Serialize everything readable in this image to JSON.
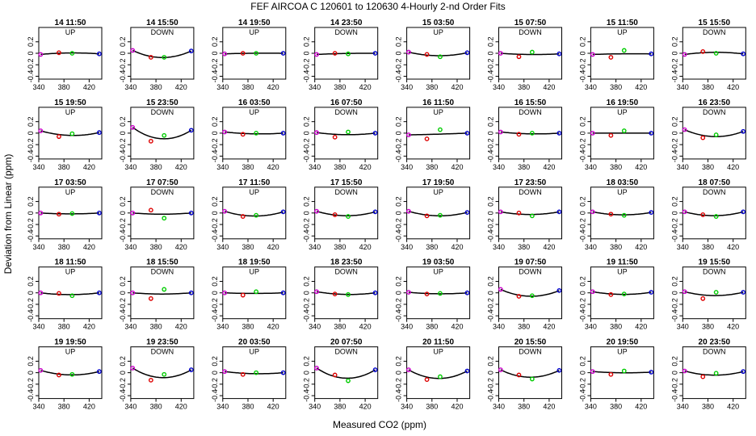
{
  "figure": {
    "title": "FEF   AIRCOA C   120601 to 120630   4-Hourly 2-nd Order Fits",
    "xlabel": "Measured CO2 (ppm)",
    "ylabel": "Deviation from Linear (ppm)"
  },
  "colors": {
    "axis": "#000000",
    "fit_curve": "#000000",
    "std_first": "#cc00cc",
    "std_second": "#dd0000",
    "std_third": "#00cc00",
    "std_fourth": "#0000cc"
  },
  "chart_data": {
    "type": "scatter",
    "panel_grid": "5 rows x 8 columns",
    "xlim": [
      340,
      440
    ],
    "ylim": [
      -0.45,
      0.45
    ],
    "x_ticks": [
      340,
      380,
      420
    ],
    "y_ticks": [
      -0.4,
      -0.2,
      0,
      0.2
    ],
    "grid": false,
    "standards_x": [
      343,
      372,
      393,
      436
    ],
    "panels": [
      {
        "time": "14 11:50",
        "dir": "UP",
        "resid": [
          -0.02,
          0.01,
          0.0,
          -0.01
        ]
      },
      {
        "time": "14 15:50",
        "dir": "DOWN",
        "resid": [
          0.05,
          -0.07,
          -0.07,
          0.04
        ]
      },
      {
        "time": "14 19:50",
        "dir": "UP",
        "resid": [
          -0.01,
          0.0,
          0.0,
          0.0
        ]
      },
      {
        "time": "14 23:50",
        "dir": "DOWN",
        "resid": [
          -0.02,
          0.0,
          -0.01,
          0.0
        ]
      },
      {
        "time": "15 03:50",
        "dir": "UP",
        "resid": [
          0.02,
          -0.02,
          -0.06,
          0.01
        ]
      },
      {
        "time": "15 07:50",
        "dir": "DOWN",
        "resid": [
          0.0,
          -0.06,
          0.02,
          -0.01
        ]
      },
      {
        "time": "15 11:50",
        "dir": "UP",
        "resid": [
          -0.02,
          -0.07,
          0.05,
          -0.01
        ]
      },
      {
        "time": "15 15:50",
        "dir": "DOWN",
        "resid": [
          -0.02,
          0.03,
          0.0,
          -0.01
        ]
      },
      {
        "time": "15 19:50",
        "dir": "UP",
        "resid": [
          0.04,
          -0.06,
          -0.01,
          0.01
        ]
      },
      {
        "time": "15 23:50",
        "dir": "DOWN",
        "resid": [
          0.1,
          -0.14,
          -0.04,
          0.05
        ]
      },
      {
        "time": "16 03:50",
        "dir": "UP",
        "resid": [
          0.02,
          -0.02,
          0.0,
          0.0
        ]
      },
      {
        "time": "16 07:50",
        "dir": "DOWN",
        "resid": [
          0.01,
          -0.07,
          0.02,
          0.0
        ]
      },
      {
        "time": "16 11:50",
        "dir": "UP",
        "resid": [
          -0.03,
          -0.1,
          0.06,
          0.0
        ]
      },
      {
        "time": "16 15:50",
        "dir": "DOWN",
        "resid": [
          0.02,
          -0.02,
          0.0,
          0.0
        ]
      },
      {
        "time": "16 19:50",
        "dir": "UP",
        "resid": [
          0.0,
          -0.04,
          0.04,
          0.0
        ]
      },
      {
        "time": "16 23:50",
        "dir": "DOWN",
        "resid": [
          0.06,
          -0.08,
          -0.03,
          0.03
        ]
      },
      {
        "time": "17 03:50",
        "dir": "UP",
        "resid": [
          0.0,
          -0.02,
          -0.01,
          0.0
        ]
      },
      {
        "time": "17 07:50",
        "dir": "DOWN",
        "resid": [
          0.0,
          0.05,
          -0.09,
          0.0
        ]
      },
      {
        "time": "17 11:50",
        "dir": "UP",
        "resid": [
          0.03,
          -0.06,
          -0.04,
          0.02
        ]
      },
      {
        "time": "17 15:50",
        "dir": "DOWN",
        "resid": [
          0.03,
          -0.03,
          -0.06,
          0.02
        ]
      },
      {
        "time": "17 19:50",
        "dir": "UP",
        "resid": [
          0.03,
          -0.05,
          -0.04,
          0.01
        ]
      },
      {
        "time": "17 23:50",
        "dir": "DOWN",
        "resid": [
          0.02,
          0.0,
          -0.05,
          0.02
        ]
      },
      {
        "time": "18 03:50",
        "dir": "UP",
        "resid": [
          0.02,
          -0.02,
          -0.04,
          0.01
        ]
      },
      {
        "time": "18 07:50",
        "dir": "DOWN",
        "resid": [
          0.02,
          -0.03,
          -0.06,
          0.02
        ]
      },
      {
        "time": "18 11:50",
        "dir": "UP",
        "resid": [
          0.0,
          -0.01,
          -0.05,
          0.0
        ]
      },
      {
        "time": "18 15:50",
        "dir": "DOWN",
        "resid": [
          0.0,
          -0.1,
          0.06,
          0.0
        ]
      },
      {
        "time": "18 19:50",
        "dir": "UP",
        "resid": [
          0.0,
          -0.04,
          0.02,
          0.0
        ]
      },
      {
        "time": "18 23:50",
        "dir": "DOWN",
        "resid": [
          0.02,
          -0.02,
          -0.03,
          0.0
        ]
      },
      {
        "time": "19 03:50",
        "dir": "UP",
        "resid": [
          0.01,
          -0.02,
          -0.01,
          0.0
        ]
      },
      {
        "time": "19 07:50",
        "dir": "DOWN",
        "resid": [
          0.06,
          -0.06,
          -0.05,
          0.04
        ]
      },
      {
        "time": "19 11:50",
        "dir": "UP",
        "resid": [
          0.02,
          -0.03,
          -0.02,
          0.01
        ]
      },
      {
        "time": "19 15:50",
        "dir": "DOWN",
        "resid": [
          0.02,
          -0.1,
          0.01,
          0.01
        ]
      },
      {
        "time": "19 19:50",
        "dir": "UP",
        "resid": [
          0.04,
          -0.04,
          -0.03,
          0.02
        ]
      },
      {
        "time": "19 23:50",
        "dir": "DOWN",
        "resid": [
          0.08,
          -0.13,
          -0.03,
          0.05
        ]
      },
      {
        "time": "20 03:50",
        "dir": "UP",
        "resid": [
          0.02,
          -0.03,
          0.0,
          0.0
        ]
      },
      {
        "time": "20 07:50",
        "dir": "DOWN",
        "resid": [
          0.08,
          -0.04,
          -0.14,
          0.05
        ]
      },
      {
        "time": "20 11:50",
        "dir": "UP",
        "resid": [
          0.05,
          -0.12,
          -0.07,
          0.03
        ]
      },
      {
        "time": "20 15:50",
        "dir": "DOWN",
        "resid": [
          0.05,
          -0.04,
          -0.11,
          0.04
        ]
      },
      {
        "time": "20 19:50",
        "dir": "UP",
        "resid": [
          0.02,
          -0.03,
          0.03,
          0.01
        ]
      },
      {
        "time": "20 23:50",
        "dir": "DOWN",
        "resid": [
          0.03,
          -0.07,
          -0.01,
          0.02
        ]
      }
    ]
  }
}
